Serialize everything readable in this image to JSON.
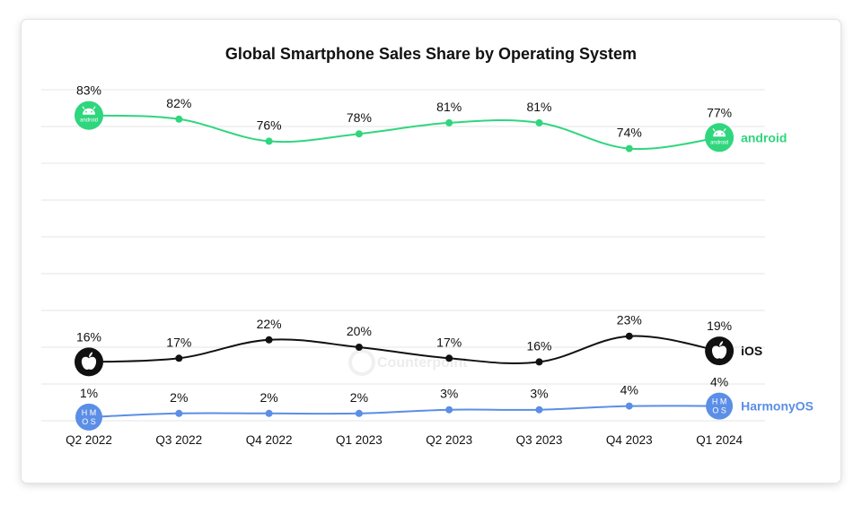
{
  "chart_data": {
    "type": "line",
    "title": "Global Smartphone Sales Share by Operating System",
    "categories": [
      "Q2 2022",
      "Q3 2022",
      "Q4 2022",
      "Q1 2023",
      "Q2 2023",
      "Q3 2023",
      "Q4 2023",
      "Q1 2024"
    ],
    "series": [
      {
        "name": "android",
        "color": "#2fd67e",
        "values": [
          83,
          82,
          76,
          78,
          81,
          81,
          74,
          77
        ],
        "value_labels": [
          "83%",
          "82%",
          "76%",
          "78%",
          "81%",
          "81%",
          "74%",
          "77%"
        ],
        "icon": "android-icon",
        "icon_text": "android"
      },
      {
        "name": "iOS",
        "color": "#111111",
        "values": [
          16,
          17,
          22,
          20,
          17,
          16,
          23,
          19
        ],
        "value_labels": [
          "16%",
          "17%",
          "22%",
          "20%",
          "17%",
          "16%",
          "23%",
          "19%"
        ],
        "icon": "apple-icon"
      },
      {
        "name": "HarmonyOS",
        "color": "#5b8ee6",
        "values": [
          1,
          2,
          2,
          2,
          3,
          3,
          4,
          4
        ],
        "value_labels": [
          "1%",
          "2%",
          "2%",
          "2%",
          "3%",
          "3%",
          "4%",
          "4%"
        ],
        "icon": "harmonyos-icon",
        "icon_text": [
          "H M",
          "O S"
        ]
      }
    ],
    "ylim": [
      0,
      90
    ],
    "grid": true,
    "legend": "end-of-line labels",
    "watermark": "Counterpoint"
  }
}
